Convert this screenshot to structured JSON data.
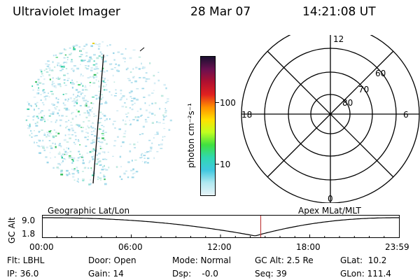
{
  "header": {
    "title": "Ultraviolet Imager",
    "date": "28 Mar 07",
    "time": "14:21:08 UT"
  },
  "colorbar": {
    "unit_label": "photon cm⁻²s⁻¹",
    "ticks": [
      "100",
      "10"
    ],
    "colors": [
      "#1a1030",
      "#6a1050",
      "#b01030",
      "#e02020",
      "#ff9000",
      "#ffe000",
      "#c0ff20",
      "#40e040",
      "#30d8b0",
      "#40c8e0",
      "#b0e8f0",
      "#e8f4f8"
    ]
  },
  "polar_plot": {
    "mlt_labels": [
      "12",
      "18",
      "6",
      "0"
    ],
    "lat_labels": [
      "60",
      "70",
      "80"
    ]
  },
  "timeline": {
    "left_label": "Geographic Lat/Lon",
    "right_label": "Apex MLat/MLT",
    "axis_title": "GC Alt",
    "y_ticks": [
      "9.0",
      "1.8"
    ],
    "x_ticks": [
      "00:00",
      "06:00",
      "12:00",
      "18:00",
      "23:59"
    ],
    "marker_time_fraction": 0.597,
    "marker_color": "#c04040"
  },
  "info": {
    "flt": "Flt: LBHL",
    "door": "Door: Open",
    "mode": "Mode: Normal",
    "gc_alt": "GC Alt: 2.5 Re",
    "glat": "GLat:  10.2",
    "ip": "IP: 36.0",
    "gain": "Gain: 14",
    "dsp": "Dsp:    -0.0",
    "seq": "Seq: 39",
    "glon": "GLon: 111.4"
  }
}
